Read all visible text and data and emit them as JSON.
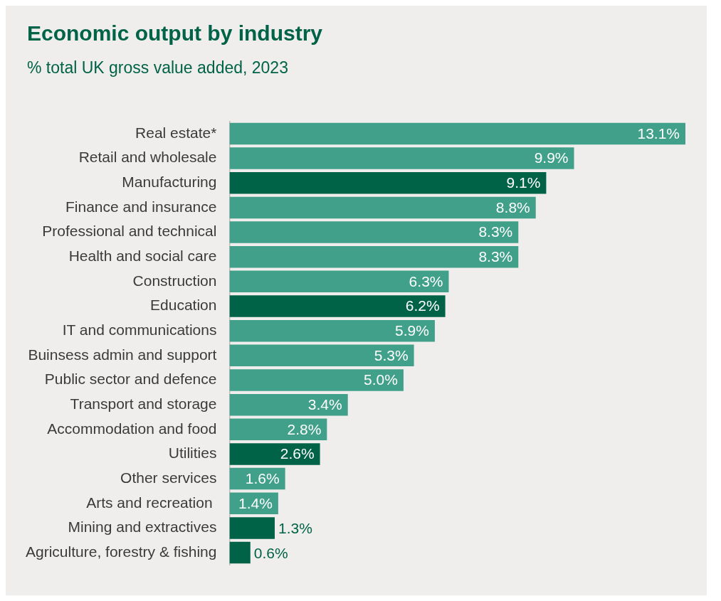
{
  "chart_data": {
    "type": "bar",
    "orientation": "horizontal",
    "title": "Economic output by industry",
    "subtitle": "% total UK gross value added, 2023",
    "categories": [
      "Real estate*",
      "Retail and wholesale",
      "Manufacturing",
      "Finance and insurance",
      "Professional and technical",
      "Health and social care",
      "Construction",
      "Education",
      "IT and communications",
      "Buinsess admin and support",
      "Public sector and defence",
      "Transport and storage",
      "Accommodation and food",
      "Utilities",
      "Other services",
      "Arts and recreation ",
      "Mining and extractives",
      "Agriculture, forestry & fishing"
    ],
    "values": [
      13.1,
      9.9,
      9.1,
      8.8,
      8.3,
      8.3,
      6.3,
      6.2,
      5.9,
      5.3,
      5.0,
      3.4,
      2.8,
      2.6,
      1.6,
      1.4,
      1.3,
      0.6
    ],
    "value_labels": [
      "13.1%",
      "9.9%",
      "9.1%",
      "8.8%",
      "8.3%",
      "8.3%",
      "6.3%",
      "6.2%",
      "5.9%",
      "5.3%",
      "5.0%",
      "3.4%",
      "2.8%",
      "2.6%",
      "1.6%",
      "1.4%",
      "1.3%",
      "0.6%"
    ],
    "colors": [
      "#40a08a",
      "#40a08a",
      "#006347",
      "#40a08a",
      "#40a08a",
      "#40a08a",
      "#40a08a",
      "#006347",
      "#40a08a",
      "#40a08a",
      "#40a08a",
      "#40a08a",
      "#40a08a",
      "#006347",
      "#40a08a",
      "#40a08a",
      "#006347",
      "#006347"
    ],
    "xlim": [
      0,
      13.1
    ],
    "tick_labels": "y",
    "grid": false,
    "legend": false
  }
}
